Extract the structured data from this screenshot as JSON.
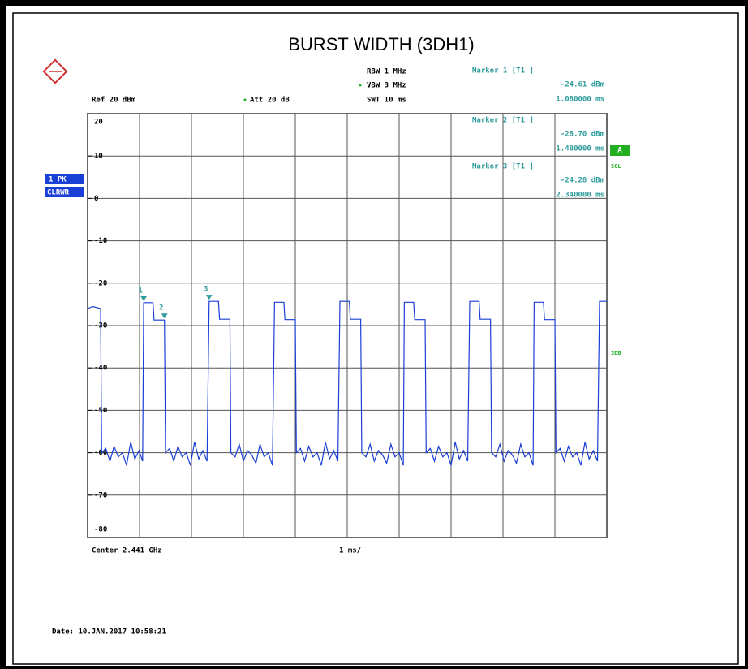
{
  "chart_data": {
    "type": "line",
    "title": "BURST WIDTH (3DH1)",
    "color": "#1a3fd6",
    "xlim": [
      0,
      10
    ],
    "xticks": [
      0,
      1,
      2,
      3,
      4,
      5,
      6,
      7,
      8,
      9,
      10
    ],
    "ylim": [
      -80,
      20
    ],
    "yticks": [
      20,
      10,
      0,
      -10,
      -20,
      -30,
      -40,
      -50,
      -60,
      -70,
      -80
    ],
    "grid": true,
    "x": [
      0,
      0.1,
      0.25,
      0.27,
      0.35,
      0.43,
      0.51,
      0.59,
      0.67,
      0.75,
      0.83,
      0.91,
      0.99,
      1.06,
      1.08,
      1.26,
      1.28,
      1.48,
      1.5,
      1.58,
      1.66,
      1.74,
      1.82,
      1.9,
      1.98,
      2.06,
      2.14,
      2.22,
      2.3,
      2.34,
      2.52,
      2.54,
      2.74,
      2.76,
      2.84,
      2.92,
      3.0,
      3.08,
      3.16,
      3.24,
      3.32,
      3.4,
      3.48,
      3.56,
      3.6,
      3.78,
      3.8,
      4.0,
      4.02,
      4.1,
      4.18,
      4.26,
      4.34,
      4.42,
      4.5,
      4.58,
      4.66,
      4.74,
      4.82,
      4.86,
      5.04,
      5.06,
      5.26,
      5.28,
      5.36,
      5.44,
      5.52,
      5.6,
      5.68,
      5.76,
      5.84,
      5.92,
      6.0,
      6.08,
      6.1,
      6.28,
      6.3,
      6.5,
      6.52,
      6.6,
      6.68,
      6.76,
      6.84,
      6.92,
      7.0,
      7.08,
      7.16,
      7.24,
      7.32,
      7.36,
      7.54,
      7.56,
      7.76,
      7.78,
      7.86,
      7.94,
      8.02,
      8.1,
      8.18,
      8.26,
      8.34,
      8.42,
      8.5,
      8.58,
      8.6,
      8.78,
      8.8,
      9.0,
      9.02,
      9.1,
      9.18,
      9.26,
      9.34,
      9.42,
      9.5,
      9.58,
      9.66,
      9.74,
      9.82,
      9.86,
      10
    ],
    "values": [
      -26,
      -25.5,
      -26,
      -60,
      -59,
      -62,
      -58.5,
      -61,
      -60,
      -63,
      -57.5,
      -61.5,
      -59.5,
      -62,
      -24.6,
      -24.6,
      -28.7,
      -28.7,
      -60,
      -59,
      -62,
      -58.5,
      -61,
      -60,
      -63,
      -57.5,
      -61.5,
      -59.5,
      -62,
      -24.3,
      -24.3,
      -28.5,
      -28.5,
      -60,
      -61,
      -58,
      -62,
      -59.5,
      -60.5,
      -62.5,
      -58,
      -61,
      -60,
      -63,
      -24.5,
      -24.5,
      -28.6,
      -28.6,
      -60,
      -59,
      -62,
      -58.5,
      -61,
      -60,
      -63,
      -57.5,
      -61.5,
      -59.5,
      -62,
      -24.3,
      -24.3,
      -28.5,
      -28.5,
      -60,
      -61,
      -58,
      -62,
      -59.5,
      -60.5,
      -62.5,
      -58,
      -61,
      -60,
      -63,
      -24.5,
      -24.5,
      -28.6,
      -28.6,
      -60,
      -59,
      -62,
      -58.5,
      -61,
      -60,
      -63,
      -57.5,
      -61.5,
      -59.5,
      -62,
      -24.3,
      -24.3,
      -28.5,
      -28.5,
      -60,
      -61,
      -58,
      -62,
      -59.5,
      -60.5,
      -62.5,
      -58,
      -61,
      -60,
      -63,
      -24.5,
      -24.5,
      -28.6,
      -28.6,
      -60,
      -59,
      -62,
      -58.5,
      -61,
      -60,
      -63,
      -57.5,
      -61.5,
      -59.5,
      -62,
      -24.3,
      -24.3
    ],
    "markers": [
      {
        "label": "1",
        "x": 1.08,
        "y": -24.61,
        "title": "Marker 1 [T1 ]",
        "level": "-24.61 dBm",
        "time": "1.080000 ms"
      },
      {
        "label": "2",
        "x": 1.48,
        "y": -28.7,
        "title": "Marker 2 [T1 ]",
        "level": "-28.70 dBm",
        "time": "1.480000 ms"
      },
      {
        "label": "3",
        "x": 2.34,
        "y": -24.28,
        "title": "Marker 3 [T1 ]",
        "level": "-24.28 dBm",
        "time": "2.340000 ms"
      }
    ]
  },
  "panel": {
    "rbw": "RBW 1 MHz",
    "vbw": "VBW 3 MHz",
    "swt": "SWT 10 ms",
    "ref": "Ref 20 dBm",
    "att": "Att 20 dB",
    "trace": "1 PK",
    "mode": "CLRWR",
    "indicator": "A",
    "sweep": "SGL",
    "limit": "3DB",
    "center": "Center 2.441 GHz",
    "span": "1 ms/",
    "date": "Date: 10.JAN.2017 10:58:21"
  }
}
